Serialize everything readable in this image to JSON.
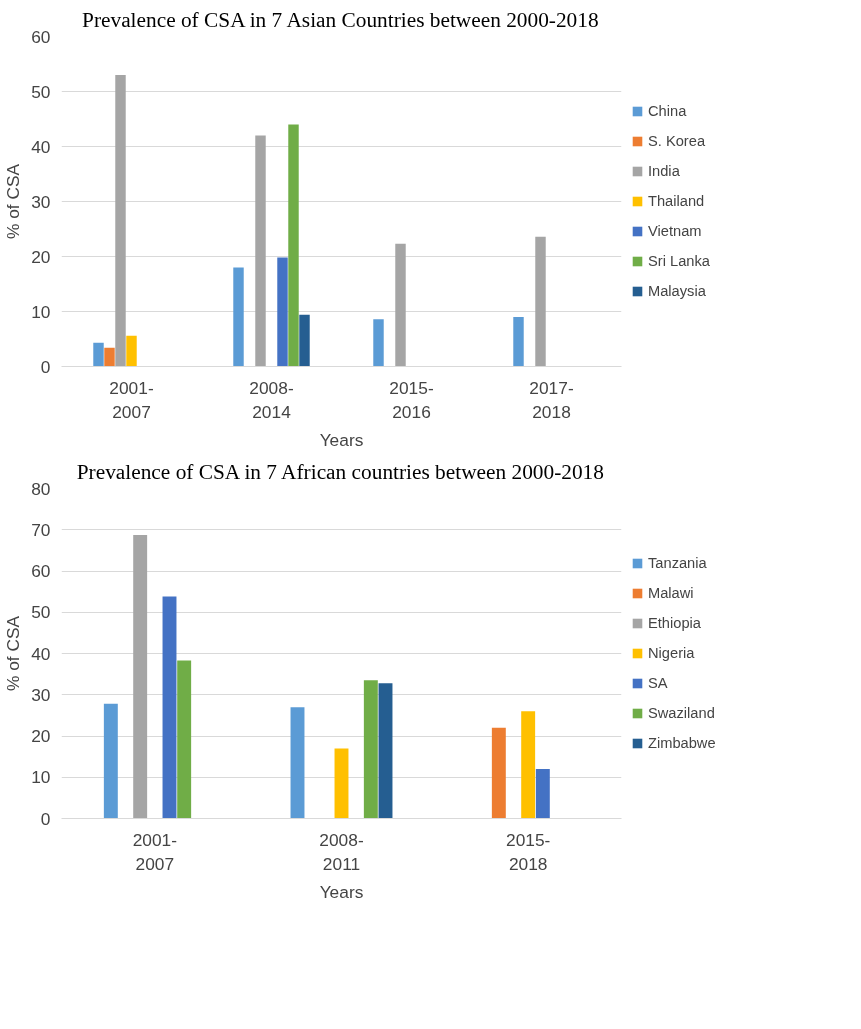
{
  "chart_data": [
    {
      "type": "bar",
      "title": "Prevalence of CSA in 7 Asian Countries between 2000-2018",
      "xlabel": "Years",
      "ylabel": "% of CSA",
      "categories": [
        "2001-2007",
        "2008-2014",
        "2015-2016",
        "2017-2018"
      ],
      "series": [
        {
          "name": "China",
          "color": "#5b9bd5",
          "values": [
            4.3,
            18,
            8.6,
            9
          ]
        },
        {
          "name": "S. Korea",
          "color": "#ed7d31",
          "values": [
            3.4,
            null,
            null,
            null
          ]
        },
        {
          "name": "India",
          "color": "#a5a5a5",
          "values": [
            53,
            42,
            22.3,
            23.6
          ]
        },
        {
          "name": "Thailand",
          "color": "#ffc000",
          "values": [
            5.6,
            null,
            null,
            null
          ]
        },
        {
          "name": "Vietnam",
          "color": "#4472c4",
          "values": [
            null,
            19.8,
            null,
            null
          ]
        },
        {
          "name": "Sri Lanka",
          "color": "#70ad47",
          "values": [
            null,
            44,
            null,
            null
          ]
        },
        {
          "name": "Malaysia",
          "color": "#255e91",
          "values": [
            null,
            9.4,
            null,
            null
          ]
        }
      ],
      "ylim": [
        0,
        60
      ],
      "yticks": [
        0,
        10,
        20,
        30,
        40,
        50,
        60
      ],
      "grid": "y",
      "legend": "right"
    },
    {
      "type": "bar",
      "title": "Prevalence of CSA in 7 African countries between 2000-2018",
      "xlabel": "Years",
      "ylabel": "% of CSA",
      "categories": [
        "2001-2007",
        "2008-2011",
        "2015-2018"
      ],
      "series": [
        {
          "name": "Tanzania",
          "color": "#5b9bd5",
          "values": [
            27.8,
            27,
            null
          ]
        },
        {
          "name": "Malawi",
          "color": "#ed7d31",
          "values": [
            null,
            null,
            22
          ]
        },
        {
          "name": "Ethiopia",
          "color": "#a5a5a5",
          "values": [
            68.7,
            null,
            null
          ]
        },
        {
          "name": "Nigeria",
          "color": "#ffc000",
          "values": [
            null,
            17,
            26
          ]
        },
        {
          "name": "SA",
          "color": "#4472c4",
          "values": [
            53.8,
            null,
            12
          ]
        },
        {
          "name": "Swaziland",
          "color": "#70ad47",
          "values": [
            38.3,
            33.5,
            null
          ]
        },
        {
          "name": "Zimbabwe",
          "color": "#255e91",
          "values": [
            null,
            32.8,
            null
          ]
        }
      ],
      "ylim": [
        0,
        80
      ],
      "yticks": [
        0,
        10,
        20,
        30,
        40,
        50,
        60,
        70,
        80
      ],
      "grid": "y",
      "legend": "right"
    }
  ]
}
